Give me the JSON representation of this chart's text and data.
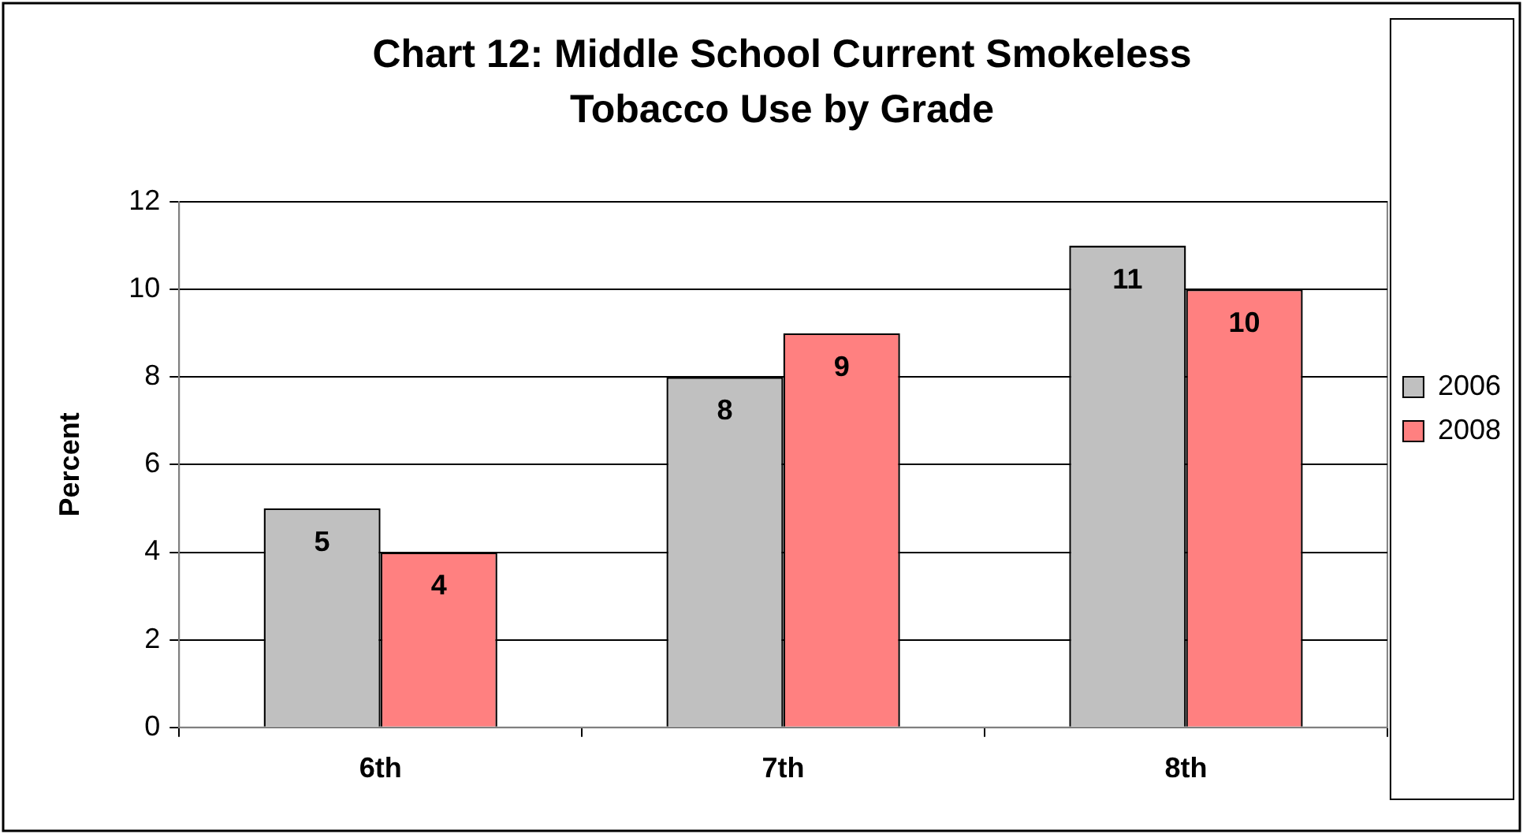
{
  "chart_data": {
    "type": "bar",
    "title": "Chart 12: Middle School Current Smokeless Tobacco Use by Grade",
    "ylabel": "Percent",
    "categories": [
      "6th",
      "7th",
      "8th"
    ],
    "series": [
      {
        "name": "2006",
        "color": "#c0c0c0",
        "values": [
          5,
          8,
          11
        ]
      },
      {
        "name": "2008",
        "color": "#ff8080",
        "values": [
          4,
          9,
          10
        ]
      }
    ],
    "ylim": [
      0,
      12
    ],
    "yticks": [
      0,
      2,
      4,
      6,
      8,
      10,
      12
    ],
    "grid": "y",
    "legend": "right",
    "data_labels": true
  }
}
